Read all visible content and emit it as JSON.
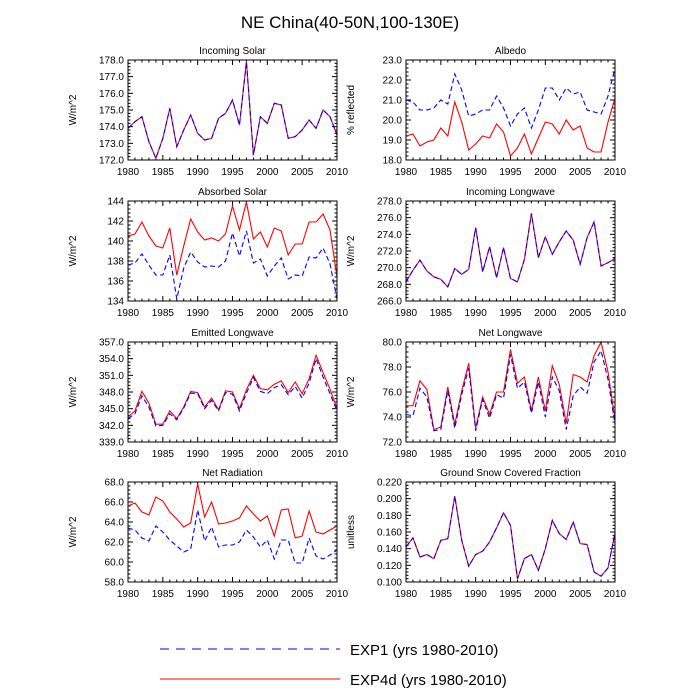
{
  "figure": {
    "title": "NE China(40-50N,100-130E)",
    "colors": {
      "exp1": "#0000ff",
      "exp4d": "#ff0000",
      "axis": "#000000"
    }
  },
  "legend": [
    {
      "label": "EXP1 (yrs 1980-2010)",
      "color": "#0000ff",
      "style": "dashed"
    },
    {
      "label": "EXP4d (yrs 1980-2010)",
      "color": "#ff0000",
      "style": "solid"
    }
  ],
  "chart_data": [
    {
      "type": "line",
      "title": "Incoming Solar",
      "ylabel": "W/m^2",
      "xlim": [
        1980,
        2010
      ],
      "ylim": [
        172,
        178
      ],
      "yticks": [
        "172.0",
        "173.0",
        "174.0",
        "175.0",
        "176.0",
        "177.0",
        "178.0"
      ],
      "xticks": [
        "1980",
        "1985",
        "1990",
        "1995",
        "2000",
        "2005",
        "2010"
      ],
      "x": [
        1980,
        1981,
        1982,
        1983,
        1984,
        1985,
        1986,
        1987,
        1988,
        1989,
        1990,
        1991,
        1992,
        1993,
        1994,
        1995,
        1996,
        1997,
        1998,
        1999,
        2000,
        2001,
        2002,
        2003,
        2004,
        2005,
        2006,
        2007,
        2008,
        2009,
        2010
      ],
      "series": [
        {
          "name": "EXP1 (yrs 1980-2010)",
          "values": [
            173.9,
            174.3,
            174.6,
            173.1,
            172.1,
            173.3,
            175.1,
            172.8,
            173.8,
            174.7,
            173.6,
            173.2,
            173.3,
            174.5,
            174.8,
            175.6,
            174.1,
            177.9,
            172.3,
            174.6,
            174.2,
            175.4,
            175.3,
            173.3,
            173.4,
            173.8,
            174.4,
            173.9,
            175.0,
            174.6,
            173.5
          ]
        },
        {
          "name": "EXP4d (yrs 1980-2010)",
          "values": [
            173.9,
            174.3,
            174.6,
            173.1,
            172.1,
            173.3,
            175.1,
            172.8,
            173.8,
            174.7,
            173.6,
            173.2,
            173.3,
            174.5,
            174.8,
            175.6,
            174.1,
            177.9,
            172.3,
            174.6,
            174.2,
            175.4,
            175.3,
            173.3,
            173.4,
            173.8,
            174.4,
            173.9,
            175.0,
            174.6,
            173.5
          ]
        }
      ]
    },
    {
      "type": "line",
      "title": "Albedo",
      "ylabel": "% reflected",
      "xlim": [
        1980,
        2010
      ],
      "ylim": [
        18,
        23
      ],
      "yticks": [
        "18.0",
        "19.0",
        "20.0",
        "21.0",
        "22.0",
        "23.0"
      ],
      "xticks": [
        "1980",
        "1985",
        "1990",
        "1995",
        "2000",
        "2005",
        "2010"
      ],
      "x": [
        1980,
        1981,
        1982,
        1983,
        1984,
        1985,
        1986,
        1987,
        1988,
        1989,
        1990,
        1991,
        1992,
        1993,
        1994,
        1995,
        1996,
        1997,
        1998,
        1999,
        2000,
        2001,
        2002,
        2003,
        2004,
        2005,
        2006,
        2007,
        2008,
        2009,
        2010
      ],
      "series": [
        {
          "name": "EXP1 (yrs 1980-2010)",
          "values": [
            21.0,
            20.9,
            20.5,
            20.5,
            20.6,
            21.0,
            20.8,
            22.3,
            21.5,
            20.2,
            20.3,
            20.5,
            20.5,
            21.2,
            20.6,
            19.7,
            20.3,
            20.6,
            19.6,
            20.5,
            21.6,
            21.6,
            21.0,
            21.6,
            21.3,
            21.4,
            20.5,
            20.4,
            20.3,
            21.2,
            22.6
          ]
        },
        {
          "name": "EXP4d (yrs 1980-2010)",
          "values": [
            19.2,
            19.3,
            18.7,
            18.9,
            19.0,
            19.6,
            19.2,
            20.9,
            19.9,
            18.5,
            18.8,
            19.2,
            19.1,
            19.8,
            19.4,
            18.2,
            18.6,
            19.3,
            18.3,
            19.1,
            19.9,
            19.8,
            19.3,
            20.0,
            19.5,
            19.7,
            18.6,
            18.4,
            18.4,
            19.9,
            21.1
          ]
        }
      ]
    },
    {
      "type": "line",
      "title": "Absorbed Solar",
      "ylabel": "W/m^2",
      "xlim": [
        1980,
        2010
      ],
      "ylim": [
        134,
        144
      ],
      "yticks": [
        "134",
        "136",
        "138",
        "140",
        "142",
        "144"
      ],
      "xticks": [
        "1980",
        "1985",
        "1990",
        "1995",
        "2000",
        "2005",
        "2010"
      ],
      "x": [
        1980,
        1981,
        1982,
        1983,
        1984,
        1985,
        1986,
        1987,
        1988,
        1989,
        1990,
        1991,
        1992,
        1993,
        1994,
        1995,
        1996,
        1997,
        1998,
        1999,
        2000,
        2001,
        2002,
        2003,
        2004,
        2005,
        2006,
        2007,
        2008,
        2009,
        2010
      ],
      "series": [
        {
          "name": "EXP1 (yrs 1980-2010)",
          "values": [
            137.6,
            137.8,
            138.7,
            137.6,
            136.6,
            136.6,
            138.6,
            134.2,
            137.3,
            138.9,
            137.9,
            137.4,
            137.5,
            137.4,
            138.0,
            140.8,
            138.5,
            141.0,
            137.8,
            138.2,
            136.5,
            137.5,
            138.3,
            136.2,
            136.6,
            136.5,
            138.4,
            138.3,
            139.3,
            137.7,
            134.2
          ]
        },
        {
          "name": "EXP4d (yrs 1980-2010)",
          "values": [
            140.5,
            140.7,
            141.9,
            140.5,
            139.5,
            139.3,
            141.3,
            136.6,
            139.5,
            142.2,
            140.9,
            140.1,
            140.3,
            140.0,
            140.7,
            143.5,
            141.1,
            143.9,
            140.2,
            140.9,
            139.4,
            141.3,
            141.0,
            138.6,
            139.7,
            139.7,
            141.9,
            141.9,
            142.7,
            141.1,
            136.4
          ]
        }
      ]
    },
    {
      "type": "line",
      "title": "Incoming Longwave",
      "ylabel": "W/m^2",
      "xlim": [
        1980,
        2010
      ],
      "ylim": [
        266,
        278
      ],
      "yticks": [
        "266.0",
        "268.0",
        "270.0",
        "272.0",
        "274.0",
        "276.0",
        "278.0"
      ],
      "xticks": [
        "1980",
        "1985",
        "1990",
        "1995",
        "2000",
        "2005",
        "2010"
      ],
      "x": [
        1980,
        1981,
        1982,
        1983,
        1984,
        1985,
        1986,
        1987,
        1988,
        1989,
        1990,
        1991,
        1992,
        1993,
        1994,
        1995,
        1996,
        1997,
        1998,
        1999,
        2000,
        2001,
        2002,
        2003,
        2004,
        2005,
        2006,
        2007,
        2008,
        2009,
        2010
      ],
      "series": [
        {
          "name": "EXP1 (yrs 1980-2010)",
          "values": [
            268.3,
            269.7,
            270.9,
            269.6,
            268.9,
            268.6,
            267.7,
            269.9,
            269.2,
            269.8,
            274.8,
            269.5,
            272.5,
            268.8,
            272.4,
            268.7,
            268.3,
            271.0,
            276.5,
            271.2,
            273.7,
            271.6,
            273.1,
            274.4,
            273.3,
            270.4,
            273.6,
            275.5,
            270.2,
            270.6,
            271.1
          ]
        },
        {
          "name": "EXP4d (yrs 1980-2010)",
          "values": [
            268.3,
            269.7,
            270.9,
            269.6,
            268.9,
            268.6,
            267.7,
            269.9,
            269.2,
            269.8,
            274.8,
            269.5,
            272.5,
            268.8,
            272.4,
            268.7,
            268.3,
            271.0,
            276.5,
            271.2,
            273.7,
            271.6,
            273.1,
            274.4,
            273.3,
            270.4,
            273.6,
            275.5,
            270.2,
            270.6,
            271.1
          ]
        }
      ]
    },
    {
      "type": "line",
      "title": "Emitted Longwave",
      "ylabel": "W/m^2",
      "xlim": [
        1980,
        2010
      ],
      "ylim": [
        339,
        357
      ],
      "yticks": [
        "339.0",
        "342.0",
        "345.0",
        "348.0",
        "351.0",
        "354.0",
        "357.0"
      ],
      "xticks": [
        "1980",
        "1985",
        "1990",
        "1995",
        "2000",
        "2005",
        "2010"
      ],
      "x": [
        1980,
        1981,
        1982,
        1983,
        1984,
        1985,
        1986,
        1987,
        1988,
        1989,
        1990,
        1991,
        1992,
        1993,
        1994,
        1995,
        1996,
        1997,
        1998,
        1999,
        2000,
        2001,
        2002,
        2003,
        2004,
        2005,
        2006,
        2007,
        2008,
        2009,
        2010
      ],
      "series": [
        {
          "name": "EXP1 (yrs 1980-2010)",
          "values": [
            343.2,
            344.1,
            347.3,
            345.3,
            341.9,
            342.0,
            344.1,
            343.0,
            345.1,
            347.8,
            347.7,
            345.0,
            346.5,
            344.6,
            347.9,
            347.6,
            344.6,
            347.8,
            350.6,
            348.1,
            347.7,
            348.8,
            349.3,
            347.5,
            349.0,
            346.9,
            349.6,
            354.0,
            350.7,
            347.7,
            344.6
          ]
        },
        {
          "name": "EXP4d (yrs 1980-2010)",
          "values": [
            343.5,
            344.6,
            348.1,
            346.0,
            342.2,
            342.2,
            344.6,
            343.2,
            345.3,
            348.1,
            347.9,
            345.3,
            346.9,
            344.8,
            348.2,
            348.0,
            345.0,
            348.4,
            351.0,
            348.6,
            348.4,
            349.4,
            350.0,
            347.9,
            349.8,
            347.7,
            350.4,
            354.6,
            351.5,
            348.5,
            345.0
          ]
        }
      ]
    },
    {
      "type": "line",
      "title": "Net Longwave",
      "ylabel": "W/m^2",
      "xlim": [
        1980,
        2010
      ],
      "ylim": [
        72,
        80
      ],
      "yticks": [
        "72.0",
        "74.0",
        "76.0",
        "78.0",
        "80.0"
      ],
      "xticks": [
        "1980",
        "1985",
        "1990",
        "1995",
        "2000",
        "2005",
        "2010"
      ],
      "x": [
        1980,
        1981,
        1982,
        1983,
        1984,
        1985,
        1986,
        1987,
        1988,
        1989,
        1990,
        1991,
        1992,
        1993,
        1994,
        1995,
        1996,
        1997,
        1998,
        1999,
        2000,
        2001,
        2002,
        2003,
        2004,
        2005,
        2006,
        2007,
        2008,
        2009,
        2010
      ],
      "series": [
        {
          "name": "EXP1 (yrs 1980-2010)",
          "values": [
            74.2,
            74.1,
            76.3,
            75.6,
            72.9,
            73.0,
            76.1,
            73.1,
            75.8,
            77.9,
            72.9,
            75.4,
            73.9,
            75.8,
            75.5,
            79.0,
            76.3,
            76.8,
            74.3,
            76.8,
            74.0,
            77.2,
            76.1,
            73.0,
            75.7,
            76.4,
            75.9,
            78.4,
            79.3,
            77.0,
            73.4
          ]
        },
        {
          "name": "EXP4d (yrs 1980-2010)",
          "values": [
            74.9,
            74.9,
            76.9,
            76.2,
            73.0,
            73.2,
            76.4,
            73.4,
            76.1,
            78.3,
            73.1,
            75.6,
            74.2,
            76.0,
            76.0,
            79.4,
            76.7,
            77.2,
            74.5,
            77.2,
            74.5,
            78.1,
            76.6,
            73.5,
            77.4,
            77.2,
            76.8,
            78.9,
            80.0,
            77.6,
            73.8
          ]
        }
      ]
    },
    {
      "type": "line",
      "title": "Net Radiation",
      "ylabel": "W/m^2",
      "xlim": [
        1980,
        2010
      ],
      "ylim": [
        58,
        68
      ],
      "yticks": [
        "58.0",
        "60.0",
        "62.0",
        "64.0",
        "66.0",
        "68.0"
      ],
      "xticks": [
        "1980",
        "1985",
        "1990",
        "1995",
        "2000",
        "2005",
        "2010"
      ],
      "x": [
        1980,
        1981,
        1982,
        1983,
        1984,
        1985,
        1986,
        1987,
        1988,
        1989,
        1990,
        1991,
        1992,
        1993,
        1994,
        1995,
        1996,
        1997,
        1998,
        1999,
        2000,
        2001,
        2002,
        2003,
        2004,
        2005,
        2006,
        2007,
        2008,
        2009,
        2010
      ],
      "series": [
        {
          "name": "EXP1 (yrs 1980-2010)",
          "values": [
            63.4,
            63.2,
            62.4,
            62.1,
            63.6,
            63.0,
            62.2,
            61.6,
            61.0,
            61.3,
            65.2,
            62.1,
            63.5,
            61.5,
            61.7,
            61.7,
            62.0,
            63.2,
            62.5,
            61.5,
            62.2,
            60.3,
            62.2,
            62.2,
            59.9,
            59.9,
            62.4,
            60.6,
            60.3,
            60.7,
            61.2
          ]
        },
        {
          "name": "EXP4d (yrs 1980-2010)",
          "values": [
            65.6,
            65.9,
            65.0,
            64.7,
            66.5,
            66.1,
            65.0,
            64.3,
            63.5,
            63.9,
            67.8,
            64.5,
            66.0,
            63.8,
            63.9,
            64.1,
            64.4,
            65.6,
            64.8,
            64.1,
            64.6,
            62.6,
            65.2,
            65.3,
            62.4,
            62.6,
            65.1,
            63.0,
            62.8,
            63.2,
            63.6
          ]
        }
      ]
    },
    {
      "type": "line",
      "title": "Ground Snow Covered Fraction",
      "ylabel": "unitless",
      "xlim": [
        1980,
        2010
      ],
      "ylim": [
        0.1,
        0.22
      ],
      "yticks": [
        "0.100",
        "0.120",
        "0.140",
        "0.160",
        "0.180",
        "0.200",
        "0.220"
      ],
      "xticks": [
        "1980",
        "1985",
        "1990",
        "1995",
        "2000",
        "2005",
        "2010"
      ],
      "x": [
        1980,
        1981,
        1982,
        1983,
        1984,
        1985,
        1986,
        1987,
        1988,
        1989,
        1990,
        1991,
        1992,
        1993,
        1994,
        1995,
        1996,
        1997,
        1998,
        1999,
        2000,
        2001,
        2002,
        2003,
        2004,
        2005,
        2006,
        2007,
        2008,
        2009,
        2010
      ],
      "series": [
        {
          "name": "EXP1 (yrs 1980-2010)",
          "values": [
            0.142,
            0.153,
            0.13,
            0.133,
            0.128,
            0.15,
            0.152,
            0.203,
            0.15,
            0.119,
            0.133,
            0.137,
            0.148,
            0.165,
            0.183,
            0.168,
            0.104,
            0.128,
            0.133,
            0.114,
            0.14,
            0.174,
            0.158,
            0.151,
            0.172,
            0.146,
            0.145,
            0.112,
            0.107,
            0.117,
            0.159
          ]
        },
        {
          "name": "EXP4d (yrs 1980-2010)",
          "values": [
            0.142,
            0.153,
            0.13,
            0.133,
            0.128,
            0.15,
            0.152,
            0.203,
            0.15,
            0.119,
            0.133,
            0.137,
            0.148,
            0.165,
            0.183,
            0.168,
            0.104,
            0.128,
            0.133,
            0.114,
            0.14,
            0.174,
            0.158,
            0.151,
            0.172,
            0.146,
            0.145,
            0.112,
            0.107,
            0.117,
            0.159
          ]
        }
      ]
    }
  ]
}
